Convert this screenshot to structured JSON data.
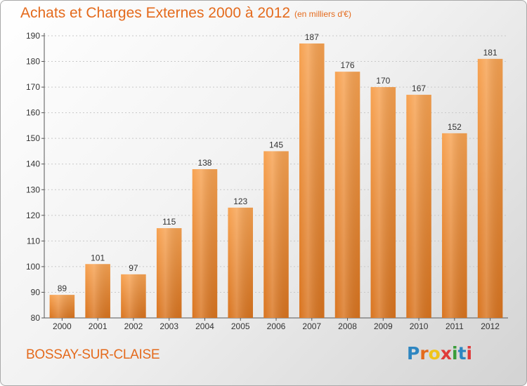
{
  "header": {
    "title": "Achats et Charges Externes 2000 à 2012",
    "unit": "(en milliers d'€)"
  },
  "footer": {
    "commune": "BOSSAY-SUR-CLAISE",
    "logo_text": "Proxiti",
    "logo_letter_colors": [
      "#2e86c1",
      "#e46a1c",
      "#f0c419",
      "#e03a3a",
      "#3a9d3a",
      "#2e86c1",
      "#e03a3a"
    ]
  },
  "colors": {
    "bar_light": "#f7a251",
    "bar_dark": "#d9741f",
    "accent": "#e46a1c"
  },
  "chart_data": {
    "type": "bar",
    "categories": [
      "2000",
      "2001",
      "2002",
      "2003",
      "2004",
      "2005",
      "2006",
      "2007",
      "2008",
      "2009",
      "2010",
      "2011",
      "2012"
    ],
    "values": [
      89,
      101,
      97,
      115,
      138,
      123,
      145,
      187,
      176,
      170,
      167,
      152,
      181
    ],
    "title": "Achats et Charges Externes 2000 à 2012",
    "xlabel": "",
    "ylabel": "",
    "ylim": [
      80,
      190
    ],
    "yticks": [
      80,
      90,
      100,
      110,
      120,
      130,
      140,
      150,
      160,
      170,
      180,
      190
    ],
    "grid": true,
    "legend": "none"
  }
}
